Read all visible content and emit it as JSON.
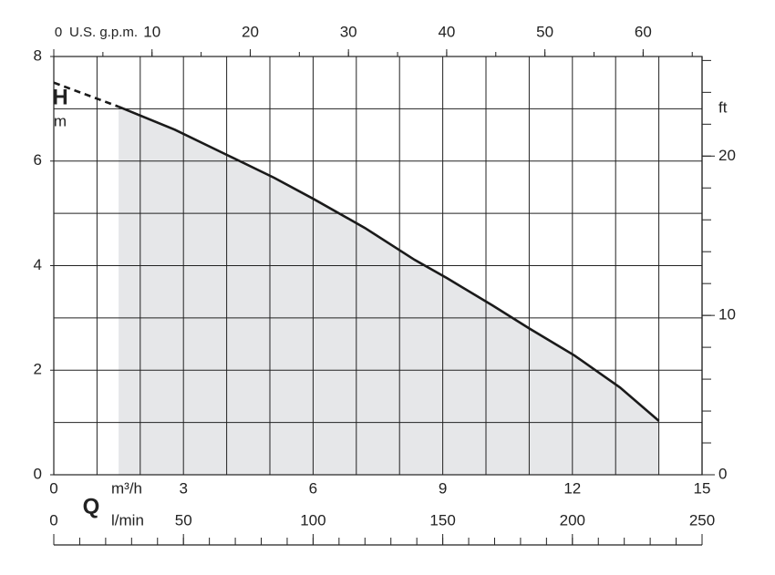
{
  "chart_data": {
    "type": "line",
    "xlabel": "m³/h",
    "ylabel": "H",
    "yunit": "m",
    "xlim": [
      0,
      15
    ],
    "xticks": [
      0,
      3,
      6,
      9,
      12,
      15
    ],
    "x_grid_step": 1,
    "ylim": [
      0,
      8
    ],
    "yticks": [
      0,
      2,
      4,
      6,
      8
    ],
    "y_grid_step": 1,
    "grid": true,
    "series": [
      {
        "color": "#1a1a1a",
        "dashed": true,
        "fill": false,
        "x": [
          0,
          1.5
        ],
        "values": [
          7.5,
          7.04
        ]
      },
      {
        "color": "#1a1a1a",
        "dashed": false,
        "fill": true,
        "fill_color": "#e6e7e9",
        "x": [
          1.5,
          2.8,
          4,
          5.1,
          6,
          7.2,
          8.35,
          9.1,
          10.15,
          11,
          12.05,
          13.1,
          14
        ],
        "values": [
          7.04,
          6.6,
          6.12,
          5.68,
          5.28,
          4.72,
          4.11,
          3.76,
          3.24,
          2.8,
          2.28,
          1.67,
          1.03
        ]
      }
    ],
    "top_axis": {
      "label": "U.S. g.p.m.",
      "lim": [
        0,
        66
      ],
      "ticks": [
        0,
        10,
        20,
        30,
        40,
        50,
        60
      ],
      "minor_step": 5
    },
    "right_axis": {
      "label": "ft",
      "lim": [
        0,
        26.25
      ],
      "ticks": [
        0,
        10,
        20
      ],
      "minor_step": 2
    },
    "bottom_axis": {
      "name": "Q",
      "label": "l/min",
      "lim": [
        0,
        250
      ],
      "ticks": [
        0,
        50,
        100,
        150,
        200,
        250
      ],
      "minor_step": 10
    }
  }
}
